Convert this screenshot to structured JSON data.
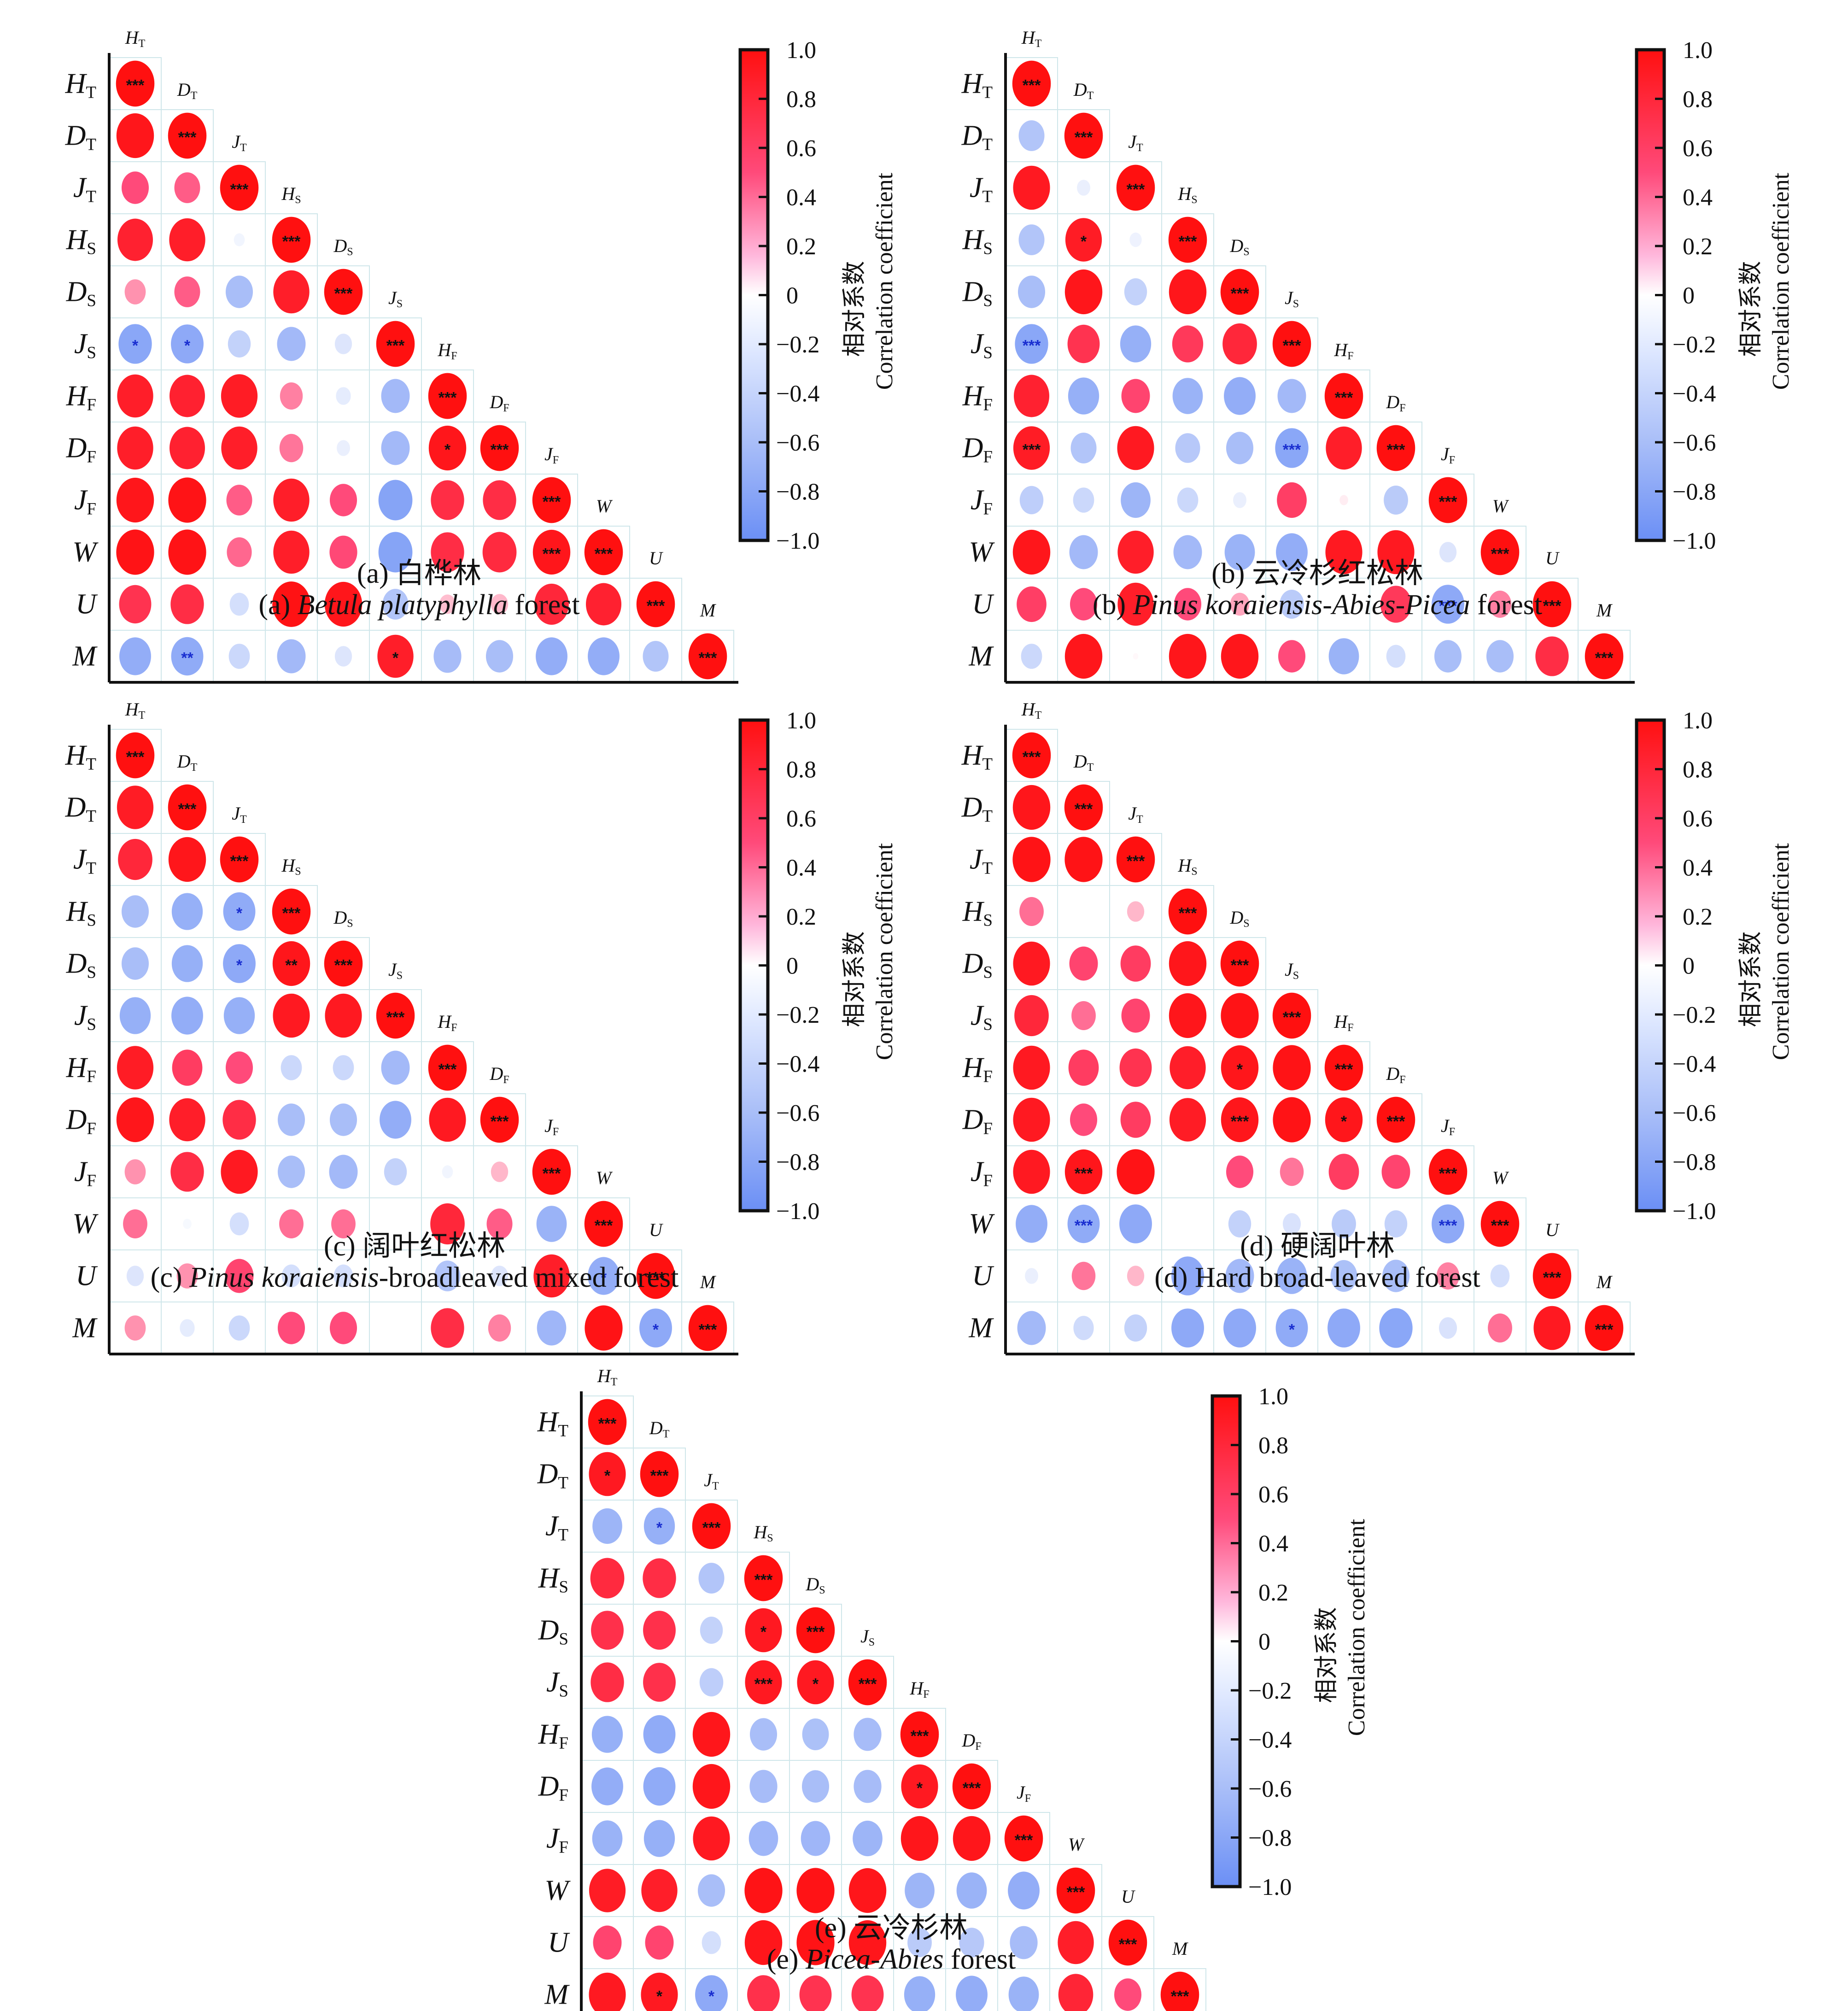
{
  "chart_data": {
    "type": "heatmap",
    "variables": [
      "H_T",
      "D_T",
      "J_T",
      "H_S",
      "D_S",
      "J_S",
      "H_F",
      "D_F",
      "J_F",
      "W",
      "U",
      "M"
    ],
    "variable_labels": [
      {
        "main": "H",
        "sub": "T"
      },
      {
        "main": "D",
        "sub": "T"
      },
      {
        "main": "J",
        "sub": "T"
      },
      {
        "main": "H",
        "sub": "S"
      },
      {
        "main": "D",
        "sub": "S"
      },
      {
        "main": "J",
        "sub": "S"
      },
      {
        "main": "H",
        "sub": "F"
      },
      {
        "main": "D",
        "sub": "F"
      },
      {
        "main": "J",
        "sub": "F"
      },
      {
        "main": "W",
        "sub": ""
      },
      {
        "main": "U",
        "sub": ""
      },
      {
        "main": "M",
        "sub": ""
      }
    ],
    "colorbar": {
      "ticks": [
        "1.0",
        "0.8",
        "0.6",
        "0.4",
        "0.2",
        "0",
        "−0.2",
        "−0.4",
        "−0.6",
        "−0.8",
        "−1.0"
      ],
      "range": [
        -1,
        1
      ],
      "label_cn": "相对系数",
      "label_en": "Correlation coefficient",
      "colors": {
        "negative": "#6b8ff5",
        "zero": "#ffffff",
        "positive": "#ff1010"
      }
    },
    "panels": [
      {
        "id": "a",
        "caption_cn": "(a) 白桦林",
        "caption_en_prefix": "(a) ",
        "caption_en_italic": "Betula platyphylla",
        "caption_en_suffix": " forest",
        "matrix": [
          [
            1
          ],
          [
            0.95,
            1
          ],
          [
            0.5,
            0.45,
            1
          ],
          [
            0.85,
            0.88,
            -0.08,
            1
          ],
          [
            0.3,
            0.45,
            -0.5,
            0.88,
            1
          ],
          [
            -0.75,
            -0.72,
            -0.35,
            -0.55,
            -0.2,
            1
          ],
          [
            0.88,
            0.85,
            0.9,
            0.35,
            -0.15,
            -0.55,
            1
          ],
          [
            0.88,
            0.85,
            0.88,
            0.38,
            -0.12,
            -0.55,
            0.95,
            1
          ],
          [
            0.95,
            0.97,
            0.45,
            0.88,
            0.5,
            -0.78,
            0.75,
            0.75,
            1
          ],
          [
            0.97,
            0.97,
            0.42,
            0.88,
            0.52,
            -0.78,
            0.75,
            0.78,
            0.95,
            1
          ],
          [
            0.7,
            0.75,
            -0.25,
            0.98,
            0.95,
            -0.45,
            0.18,
            0.2,
            0.8,
            0.85,
            1
          ],
          [
            -0.68,
            -0.7,
            -0.3,
            -0.55,
            -0.2,
            0.88,
            -0.52,
            -0.5,
            -0.68,
            -0.68,
            -0.45,
            1
          ]
        ],
        "sig": [
          [
            "***"
          ],
          [
            "",
            "***"
          ],
          [
            "",
            "",
            "***"
          ],
          [
            "",
            "",
            "",
            "***"
          ],
          [
            "",
            "",
            "",
            "",
            "***"
          ],
          [
            "*",
            "*",
            "",
            "",
            "",
            "***"
          ],
          [
            "",
            "",
            "",
            "",
            "",
            "",
            "***"
          ],
          [
            "",
            "",
            "",
            "",
            "",
            "",
            "*",
            "***"
          ],
          [
            "",
            "",
            "",
            "",
            "",
            "",
            "",
            "",
            "***"
          ],
          [
            "",
            "",
            "",
            "",
            "",
            "",
            "",
            "",
            "***",
            "***"
          ],
          [
            "",
            "",
            "",
            "",
            "",
            "",
            "",
            "",
            "",
            "",
            "***"
          ],
          [
            "",
            "**",
            "",
            "",
            "",
            "*",
            "",
            "",
            "",
            "",
            "",
            "***"
          ]
        ]
      },
      {
        "id": "b",
        "caption_cn": "(b) 云冷杉红松林",
        "caption_en_prefix": "(b) ",
        "caption_en_italic": "Pinus koraiensis-Abies-Picea",
        "caption_en_suffix": " forest",
        "matrix": [
          [
            1
          ],
          [
            -0.45,
            1
          ],
          [
            0.92,
            -0.12,
            1
          ],
          [
            -0.45,
            0.9,
            -0.1,
            1
          ],
          [
            -0.5,
            0.95,
            -0.35,
            0.95,
            1
          ],
          [
            -0.75,
            0.7,
            -0.65,
            0.65,
            0.8,
            1
          ],
          [
            0.85,
            -0.65,
            0.55,
            -0.62,
            -0.68,
            -0.55,
            1
          ],
          [
            0.9,
            -0.45,
            0.92,
            -0.42,
            -0.5,
            -0.75,
            0.88,
            1
          ],
          [
            -0.38,
            -0.3,
            -0.6,
            -0.3,
            -0.12,
            0.6,
            0.05,
            -0.4,
            1
          ],
          [
            0.95,
            -0.55,
            0.88,
            -0.55,
            -0.62,
            -0.68,
            0.92,
            0.92,
            -0.2,
            1
          ],
          [
            0.6,
            0.5,
            0.88,
            0.5,
            0.25,
            -0.4,
            0.0,
            0.65,
            -0.72,
            0.35,
            1
          ],
          [
            -0.3,
            0.95,
            0.02,
            0.95,
            0.95,
            0.5,
            -0.62,
            -0.25,
            -0.5,
            -0.5,
            0.75,
            1
          ]
        ],
        "sig": [
          [
            "***"
          ],
          [
            "",
            "***"
          ],
          [
            "",
            "",
            "***"
          ],
          [
            "",
            "*",
            "",
            "***"
          ],
          [
            "",
            "",
            "",
            "",
            "***"
          ],
          [
            "***",
            "",
            "",
            "",
            "",
            "***"
          ],
          [
            "",
            "",
            "",
            "",
            "",
            "",
            "***"
          ],
          [
            "***",
            "",
            "",
            "",
            "",
            "***",
            "",
            "***"
          ],
          [
            "",
            "",
            "",
            "",
            "",
            "",
            "",
            "",
            "***"
          ],
          [
            "",
            "",
            "",
            "",
            "",
            "",
            "",
            "",
            "",
            "***"
          ],
          [
            "",
            "",
            "",
            "",
            "",
            "",
            "",
            "",
            "***",
            "",
            "***"
          ],
          [
            "",
            "",
            "",
            "",
            "",
            "",
            "",
            "",
            "",
            "",
            "",
            "***"
          ]
        ]
      },
      {
        "id": "c",
        "caption_cn": "(c) 阔叶红松林",
        "caption_en_prefix": "(c) ",
        "caption_en_italic": "Pinus koraiensis",
        "caption_en_suffix": "-broadleaved mixed forest",
        "matrix": [
          [
            1
          ],
          [
            0.9,
            1
          ],
          [
            0.8,
            0.95,
            1
          ],
          [
            -0.5,
            -0.65,
            -0.7,
            1
          ],
          [
            -0.5,
            -0.65,
            -0.72,
            0.95,
            1
          ],
          [
            -0.65,
            -0.68,
            -0.65,
            0.92,
            0.92,
            1
          ],
          [
            0.9,
            0.62,
            0.5,
            -0.3,
            -0.3,
            -0.55,
            1
          ],
          [
            0.95,
            0.88,
            0.75,
            -0.5,
            -0.5,
            -0.68,
            0.92,
            1
          ],
          [
            0.3,
            0.75,
            0.92,
            -0.5,
            -0.55,
            -0.35,
            -0.08,
            0.2,
            1
          ],
          [
            0.4,
            -0.05,
            -0.25,
            0.4,
            0.4,
            0.0,
            0.8,
            0.45,
            -0.62,
            1
          ],
          [
            -0.2,
            0.3,
            0.55,
            -0.25,
            -0.25,
            0.0,
            -0.45,
            -0.2,
            0.88,
            -0.68,
            1
          ],
          [
            0.3,
            -0.15,
            -0.3,
            0.5,
            0.5,
            0.0,
            0.75,
            0.35,
            -0.58,
            0.97,
            -0.72,
            1
          ]
        ],
        "sig": [
          [
            "***"
          ],
          [
            "",
            "***"
          ],
          [
            "",
            "",
            "***"
          ],
          [
            "",
            "",
            "*",
            "***"
          ],
          [
            "",
            "",
            "*",
            "**",
            "***"
          ],
          [
            "",
            "",
            "",
            "",
            "",
            "***"
          ],
          [
            "",
            "",
            "",
            "",
            "",
            "",
            "***"
          ],
          [
            "",
            "",
            "",
            "",
            "",
            "",
            "",
            "***"
          ],
          [
            "",
            "",
            "",
            "",
            "",
            "",
            "",
            "",
            "***"
          ],
          [
            "",
            "",
            "",
            "",
            "",
            "",
            "",
            "",
            "",
            "***"
          ],
          [
            "",
            "",
            "",
            "",
            "",
            "",
            "",
            "",
            "",
            "*",
            "***"
          ],
          [
            "",
            "",
            "",
            "",
            "",
            "",
            "",
            "",
            "",
            "",
            "*",
            "***"
          ]
        ]
      },
      {
        "id": "d",
        "caption_cn": "(d) 硬阔叶林",
        "caption_en_prefix": "(d) Hard broad-leaved forest",
        "caption_en_italic": "",
        "caption_en_suffix": "",
        "matrix": [
          [
            1
          ],
          [
            0.95,
            1
          ],
          [
            0.97,
            0.97,
            1
          ],
          [
            0.4,
            0.0,
            0.2,
            1
          ],
          [
            0.92,
            0.55,
            0.62,
            0.95,
            1
          ],
          [
            0.8,
            0.4,
            0.55,
            0.95,
            0.97,
            1
          ],
          [
            0.92,
            0.62,
            0.7,
            0.88,
            0.95,
            0.97,
            1
          ],
          [
            0.92,
            0.5,
            0.62,
            0.9,
            0.95,
            0.97,
            0.95,
            1
          ],
          [
            0.92,
            0.95,
            0.97,
            0.0,
            0.5,
            0.38,
            0.62,
            0.55,
            1
          ],
          [
            -0.68,
            -0.7,
            -0.72,
            0.0,
            -0.35,
            -0.22,
            -0.4,
            -0.35,
            -0.72,
            1
          ],
          [
            -0.12,
            0.38,
            0.2,
            -0.72,
            -0.55,
            -0.62,
            -0.48,
            -0.5,
            0.35,
            -0.25,
            1
          ],
          [
            -0.55,
            -0.28,
            -0.35,
            -0.72,
            -0.72,
            -0.7,
            -0.72,
            -0.75,
            -0.22,
            0.4,
            0.92,
            1
          ]
        ],
        "sig": [
          [
            "***"
          ],
          [
            "",
            "***"
          ],
          [
            "",
            "",
            "***"
          ],
          [
            "",
            "",
            "",
            "***"
          ],
          [
            "",
            "",
            "",
            "",
            "***"
          ],
          [
            "",
            "",
            "",
            "",
            "",
            "***"
          ],
          [
            "",
            "",
            "",
            "",
            "*",
            "",
            "***"
          ],
          [
            "",
            "",
            "",
            "",
            "***",
            "",
            "*",
            "***"
          ],
          [
            "",
            "***",
            "",
            "",
            "",
            "",
            "",
            "",
            "***"
          ],
          [
            "",
            "***",
            "",
            "",
            "",
            "",
            "",
            "",
            "***",
            "***"
          ],
          [
            "",
            "",
            "",
            "",
            "",
            "",
            "",
            "",
            "",
            "",
            "***"
          ],
          [
            "",
            "",
            "",
            "",
            "",
            "*",
            "",
            "",
            "",
            "",
            "",
            "***"
          ]
        ]
      },
      {
        "id": "e",
        "caption_cn": "(e) 云冷杉林",
        "caption_en_prefix": "(e) ",
        "caption_en_italic": "Picea-Abies",
        "caption_en_suffix": " forest",
        "matrix": [
          [
            1
          ],
          [
            0.92,
            1
          ],
          [
            -0.6,
            -0.65,
            1
          ],
          [
            0.78,
            0.75,
            -0.45,
            1
          ],
          [
            0.72,
            0.72,
            -0.35,
            0.92,
            1
          ],
          [
            0.75,
            0.72,
            -0.38,
            0.92,
            0.92,
            1
          ],
          [
            -0.65,
            -0.7,
            0.95,
            -0.5,
            -0.48,
            -0.52,
            1
          ],
          [
            -0.68,
            -0.7,
            0.95,
            -0.52,
            -0.5,
            -0.52,
            0.92,
            1
          ],
          [
            -0.62,
            -0.65,
            0.92,
            -0.58,
            -0.58,
            -0.6,
            0.95,
            0.95,
            1
          ],
          [
            0.9,
            0.88,
            -0.5,
            0.97,
            0.97,
            0.95,
            -0.6,
            -0.62,
            -0.68,
            1
          ],
          [
            0.55,
            0.55,
            -0.25,
            0.95,
            0.97,
            0.95,
            -0.4,
            -0.42,
            -0.52,
            0.88,
            1
          ],
          [
            0.92,
            0.92,
            -0.72,
            0.72,
            0.7,
            0.7,
            -0.65,
            -0.68,
            -0.62,
            0.82,
            0.5,
            1
          ]
        ],
        "sig": [
          [
            "***"
          ],
          [
            "*",
            "***"
          ],
          [
            "",
            "*",
            "***"
          ],
          [
            "",
            "",
            "",
            "***"
          ],
          [
            "",
            "",
            "",
            "*",
            "***"
          ],
          [
            "",
            "",
            "",
            "***",
            "*",
            "***"
          ],
          [
            "",
            "",
            "",
            "",
            "",
            "",
            "***"
          ],
          [
            "",
            "",
            "",
            "",
            "",
            "",
            "*",
            "***"
          ],
          [
            "",
            "",
            "",
            "",
            "",
            "",
            "",
            "",
            "***"
          ],
          [
            "",
            "",
            "",
            "",
            "",
            "",
            "",
            "",
            "",
            "***"
          ],
          [
            "",
            "",
            "",
            "",
            "",
            "",
            "",
            "",
            "",
            "",
            "***"
          ],
          [
            "",
            "*",
            "*",
            "",
            "",
            "",
            "",
            "",
            "",
            "",
            "",
            "***"
          ]
        ]
      }
    ]
  }
}
